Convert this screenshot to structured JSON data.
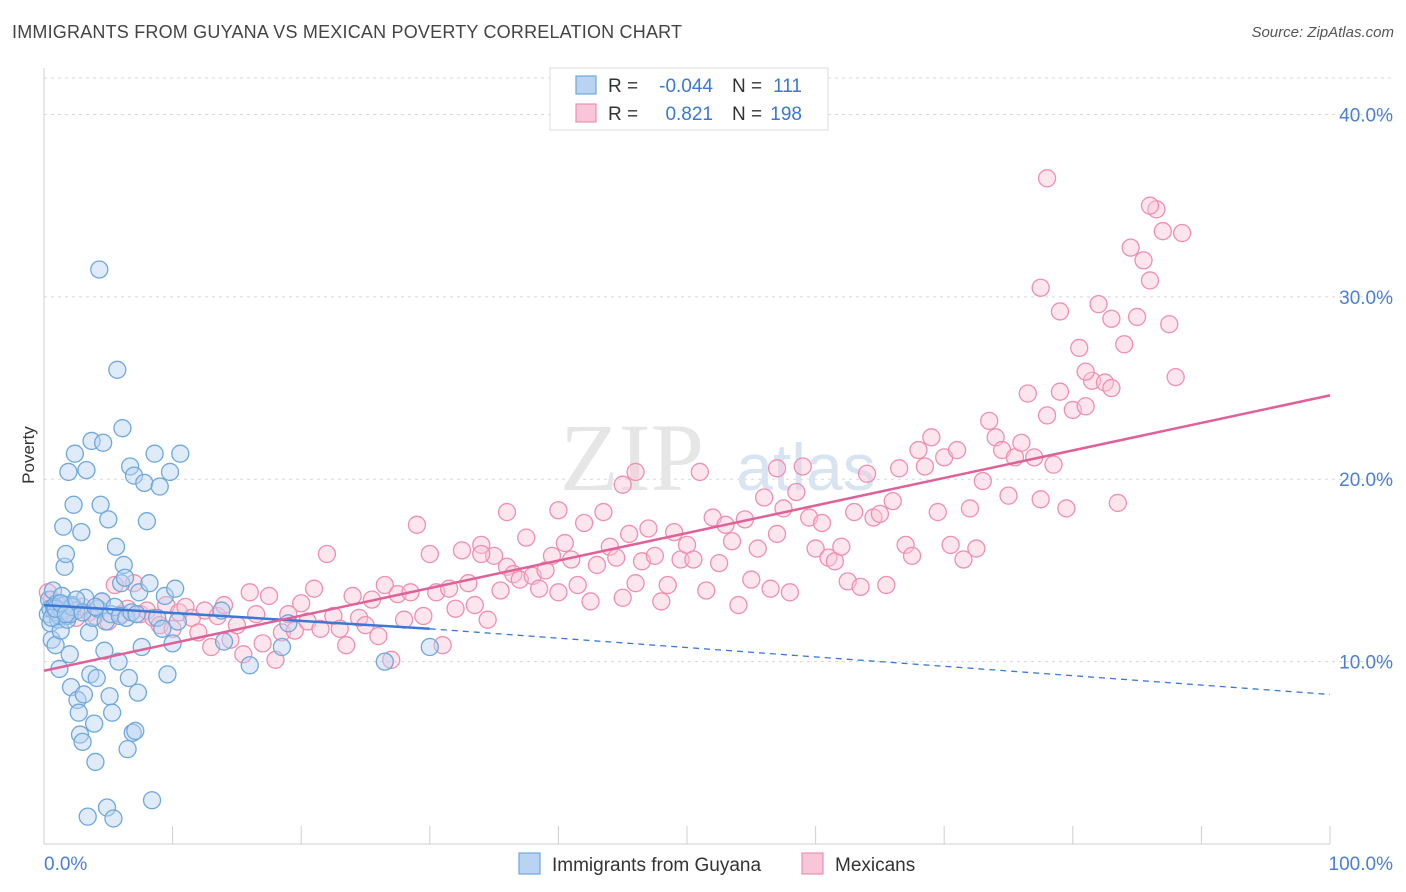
{
  "title": "IMMIGRANTS FROM GUYANA VS MEXICAN POVERTY CORRELATION CHART",
  "source": "Source: ZipAtlas.com",
  "watermark": {
    "zip": "ZIP",
    "atlas": "atlas"
  },
  "colors": {
    "blue": "#6fa8dc",
    "blue_line": "#3a78d4",
    "blue_fill": "#b9d3f2",
    "pink": "#f08fb0",
    "pink_line": "#e0609a",
    "pink_fill": "#f8c6d8",
    "axis_text": "#4a7fd4",
    "grid": "#d8d8d8"
  },
  "legend": {
    "rows": [
      {
        "r_label": "R =",
        "r_value": "-0.044",
        "n_label": "N =",
        "n_value": "111"
      },
      {
        "r_label": "R =",
        "r_value": "0.821",
        "n_label": "N =",
        "n_value": "198"
      }
    ]
  },
  "chart_data": {
    "type": "scatter",
    "title": "IMMIGRANTS FROM GUYANA VS MEXICAN POVERTY CORRELATION CHART",
    "xlabel": "",
    "ylabel": "Poverty",
    "xlim": [
      0,
      100
    ],
    "ylim": [
      0,
      42
    ],
    "x_tick_labels": [
      "0.0%",
      "100.0%"
    ],
    "y_ticks": [
      10,
      20,
      30,
      40
    ],
    "y_tick_labels": [
      "10.0%",
      "20.0%",
      "30.0%",
      "40.0%"
    ],
    "grid": true,
    "legend_position": "bottom",
    "series": [
      {
        "name": "Immigrants from Guyana",
        "color": "#6fa8dc",
        "trend": {
          "x0": 0,
          "y0": 13.1,
          "x1": 30,
          "y1": 11.8,
          "dashed_to_x": 100,
          "dashed_to_y": 8.2
        },
        "points": [
          [
            0.3,
            12.6
          ],
          [
            0.4,
            13.4
          ],
          [
            0.5,
            12.1
          ],
          [
            0.6,
            11.2
          ],
          [
            0.7,
            13.9
          ],
          [
            0.8,
            12.8
          ],
          [
            0.9,
            10.9
          ],
          [
            1.0,
            13.2
          ],
          [
            1.1,
            12.3
          ],
          [
            1.2,
            9.6
          ],
          [
            1.3,
            11.7
          ],
          [
            1.4,
            13.6
          ],
          [
            1.5,
            17.4
          ],
          [
            1.6,
            15.2
          ],
          [
            1.7,
            15.9
          ],
          [
            1.8,
            12.5
          ],
          [
            1.9,
            20.4
          ],
          [
            2.0,
            10.4
          ],
          [
            2.1,
            8.6
          ],
          [
            2.2,
            13.1
          ],
          [
            2.3,
            18.6
          ],
          [
            2.4,
            21.4
          ],
          [
            2.5,
            12.8
          ],
          [
            2.6,
            7.9
          ],
          [
            2.7,
            7.2
          ],
          [
            2.8,
            6.0
          ],
          [
            2.9,
            17.1
          ],
          [
            3.0,
            5.6
          ],
          [
            3.1,
            8.2
          ],
          [
            3.2,
            13.5
          ],
          [
            3.3,
            20.5
          ],
          [
            3.4,
            1.5
          ],
          [
            3.5,
            11.6
          ],
          [
            3.6,
            9.3
          ],
          [
            3.7,
            22.1
          ],
          [
            3.8,
            12.4
          ],
          [
            3.9,
            6.6
          ],
          [
            4.0,
            4.5
          ],
          [
            4.1,
            9.1
          ],
          [
            4.2,
            12.9
          ],
          [
            4.3,
            31.5
          ],
          [
            4.4,
            18.6
          ],
          [
            4.5,
            13.3
          ],
          [
            4.6,
            22.0
          ],
          [
            4.7,
            10.6
          ],
          [
            4.8,
            12.2
          ],
          [
            4.9,
            2.0
          ],
          [
            5.0,
            17.8
          ],
          [
            5.1,
            8.1
          ],
          [
            5.2,
            12.6
          ],
          [
            5.3,
            7.2
          ],
          [
            5.4,
            1.4
          ],
          [
            5.5,
            13.0
          ],
          [
            5.6,
            16.3
          ],
          [
            5.7,
            26.0
          ],
          [
            5.8,
            10.0
          ],
          [
            5.9,
            12.5
          ],
          [
            6.0,
            14.3
          ],
          [
            6.1,
            22.8
          ],
          [
            6.2,
            15.3
          ],
          [
            6.3,
            14.6
          ],
          [
            6.4,
            12.4
          ],
          [
            6.5,
            5.2
          ],
          [
            6.6,
            9.1
          ],
          [
            6.7,
            20.7
          ],
          [
            6.8,
            12.7
          ],
          [
            6.9,
            6.1
          ],
          [
            7.0,
            20.2
          ],
          [
            7.1,
            6.2
          ],
          [
            7.2,
            12.6
          ],
          [
            7.3,
            8.3
          ],
          [
            7.4,
            13.8
          ],
          [
            7.6,
            10.8
          ],
          [
            7.8,
            19.8
          ],
          [
            8.0,
            17.7
          ],
          [
            8.2,
            14.3
          ],
          [
            8.4,
            2.4
          ],
          [
            8.6,
            21.4
          ],
          [
            8.8,
            12.4
          ],
          [
            9.0,
            19.6
          ],
          [
            9.2,
            11.8
          ],
          [
            9.4,
            13.6
          ],
          [
            9.6,
            9.3
          ],
          [
            9.8,
            20.4
          ],
          [
            10.0,
            11.0
          ],
          [
            10.2,
            14.0
          ],
          [
            10.4,
            12.2
          ],
          [
            10.6,
            21.4
          ],
          [
            13.8,
            12.8
          ],
          [
            14.0,
            11.1
          ],
          [
            16.0,
            9.8
          ],
          [
            18.5,
            10.8
          ],
          [
            19.0,
            12.1
          ],
          [
            26.5,
            10.0
          ],
          [
            30.0,
            10.8
          ],
          [
            0.5,
            12.9
          ],
          [
            0.8,
            13.0
          ],
          [
            1.0,
            12.7
          ],
          [
            1.2,
            12.5
          ],
          [
            1.4,
            12.8
          ],
          [
            1.6,
            13.1
          ],
          [
            1.8,
            12.3
          ],
          [
            2.0,
            12.6
          ],
          [
            2.2,
            13.0
          ],
          [
            0.6,
            12.4
          ],
          [
            0.9,
            12.9
          ],
          [
            1.3,
            13.2
          ],
          [
            1.7,
            12.6
          ],
          [
            2.5,
            13.4
          ],
          [
            3.0,
            12.7
          ],
          [
            4.0,
            13.0
          ]
        ]
      },
      {
        "name": "Mexicans",
        "color": "#f08fb0",
        "trend": {
          "x0": 0,
          "y0": 9.5,
          "x1": 100,
          "y1": 24.6
        },
        "points": [
          [
            0.3,
            13.8
          ],
          [
            0.6,
            13.4
          ],
          [
            1.0,
            12.9
          ],
          [
            1.5,
            12.6
          ],
          [
            2.0,
            13.1
          ],
          [
            2.5,
            12.4
          ],
          [
            3.0,
            13.0
          ],
          [
            3.5,
            12.7
          ],
          [
            4.0,
            12.5
          ],
          [
            4.5,
            13.3
          ],
          [
            5.0,
            12.2
          ],
          [
            5.5,
            14.2
          ],
          [
            6.0,
            12.6
          ],
          [
            6.5,
            12.9
          ],
          [
            7.0,
            14.3
          ],
          [
            7.5,
            12.6
          ],
          [
            8.0,
            12.8
          ],
          [
            8.5,
            12.4
          ],
          [
            9.0,
            12.0
          ],
          [
            9.5,
            13.1
          ],
          [
            10.0,
            11.8
          ],
          [
            10.5,
            12.7
          ],
          [
            11.0,
            13.0
          ],
          [
            11.5,
            12.4
          ],
          [
            12.0,
            11.6
          ],
          [
            12.5,
            12.8
          ],
          [
            13.0,
            10.8
          ],
          [
            13.5,
            12.5
          ],
          [
            14.0,
            13.1
          ],
          [
            14.5,
            11.2
          ],
          [
            15.0,
            12.0
          ],
          [
            15.5,
            10.4
          ],
          [
            16.0,
            13.8
          ],
          [
            16.5,
            12.6
          ],
          [
            17.0,
            11.0
          ],
          [
            17.5,
            13.6
          ],
          [
            18.0,
            10.1
          ],
          [
            18.5,
            11.6
          ],
          [
            19.0,
            12.6
          ],
          [
            19.5,
            11.7
          ],
          [
            20.0,
            13.2
          ],
          [
            20.5,
            12.2
          ],
          [
            21.0,
            14.0
          ],
          [
            21.5,
            11.8
          ],
          [
            22.0,
            15.9
          ],
          [
            22.5,
            12.5
          ],
          [
            23.0,
            11.8
          ],
          [
            23.5,
            10.9
          ],
          [
            24.0,
            13.6
          ],
          [
            24.5,
            12.4
          ],
          [
            25.0,
            12.0
          ],
          [
            25.5,
            13.4
          ],
          [
            26.0,
            11.4
          ],
          [
            26.5,
            14.2
          ],
          [
            27.0,
            10.1
          ],
          [
            27.5,
            13.7
          ],
          [
            28.0,
            12.3
          ],
          [
            28.5,
            13.8
          ],
          [
            29.0,
            17.5
          ],
          [
            29.5,
            12.5
          ],
          [
            30.0,
            15.9
          ],
          [
            30.5,
            13.8
          ],
          [
            31.0,
            10.9
          ],
          [
            31.5,
            14.0
          ],
          [
            32.0,
            12.9
          ],
          [
            32.5,
            16.1
          ],
          [
            33.0,
            14.3
          ],
          [
            33.5,
            13.1
          ],
          [
            34.0,
            16.4
          ],
          [
            34.5,
            12.3
          ],
          [
            35.0,
            15.8
          ],
          [
            35.5,
            13.9
          ],
          [
            36.0,
            15.2
          ],
          [
            36.5,
            14.8
          ],
          [
            37.0,
            14.5
          ],
          [
            37.5,
            16.8
          ],
          [
            38.0,
            14.7
          ],
          [
            38.5,
            14.0
          ],
          [
            39.0,
            15.0
          ],
          [
            39.5,
            15.8
          ],
          [
            40.0,
            13.8
          ],
          [
            40.5,
            16.5
          ],
          [
            41.0,
            15.6
          ],
          [
            41.5,
            14.2
          ],
          [
            42.0,
            17.6
          ],
          [
            42.5,
            13.3
          ],
          [
            43.0,
            15.3
          ],
          [
            43.5,
            18.2
          ],
          [
            44.0,
            16.3
          ],
          [
            44.5,
            15.7
          ],
          [
            45.0,
            13.5
          ],
          [
            45.5,
            17.0
          ],
          [
            46.0,
            14.3
          ],
          [
            46.5,
            15.5
          ],
          [
            47.0,
            17.3
          ],
          [
            47.5,
            15.8
          ],
          [
            48.0,
            13.3
          ],
          [
            48.5,
            14.2
          ],
          [
            49.0,
            17.1
          ],
          [
            49.5,
            15.6
          ],
          [
            50.0,
            16.4
          ],
          [
            50.5,
            15.6
          ],
          [
            51.0,
            20.4
          ],
          [
            51.5,
            13.9
          ],
          [
            52.0,
            17.9
          ],
          [
            52.5,
            15.4
          ],
          [
            53.0,
            17.5
          ],
          [
            53.5,
            16.6
          ],
          [
            54.0,
            13.1
          ],
          [
            54.5,
            17.8
          ],
          [
            55.0,
            14.5
          ],
          [
            55.5,
            16.2
          ],
          [
            56.0,
            19.0
          ],
          [
            56.5,
            14.0
          ],
          [
            57.0,
            17.0
          ],
          [
            57.5,
            18.4
          ],
          [
            58.0,
            13.8
          ],
          [
            58.5,
            19.3
          ],
          [
            59.0,
            20.7
          ],
          [
            59.5,
            17.9
          ],
          [
            60.0,
            16.2
          ],
          [
            60.5,
            17.6
          ],
          [
            61.0,
            15.7
          ],
          [
            61.5,
            15.5
          ],
          [
            62.0,
            16.3
          ],
          [
            62.5,
            14.4
          ],
          [
            63.0,
            18.2
          ],
          [
            63.5,
            14.1
          ],
          [
            64.0,
            20.3
          ],
          [
            64.5,
            17.9
          ],
          [
            65.0,
            18.1
          ],
          [
            65.5,
            14.2
          ],
          [
            66.0,
            18.8
          ],
          [
            66.5,
            20.6
          ],
          [
            67.0,
            16.4
          ],
          [
            67.5,
            15.8
          ],
          [
            68.0,
            21.6
          ],
          [
            68.5,
            20.7
          ],
          [
            69.0,
            22.3
          ],
          [
            69.5,
            18.2
          ],
          [
            70.0,
            21.2
          ],
          [
            70.5,
            16.4
          ],
          [
            71.0,
            21.6
          ],
          [
            71.5,
            15.6
          ],
          [
            72.0,
            18.4
          ],
          [
            72.5,
            16.2
          ],
          [
            73.0,
            19.9
          ],
          [
            73.5,
            23.2
          ],
          [
            74.0,
            22.3
          ],
          [
            74.5,
            21.6
          ],
          [
            75.0,
            19.1
          ],
          [
            75.5,
            21.2
          ],
          [
            76.0,
            22.0
          ],
          [
            76.5,
            24.7
          ],
          [
            77.0,
            21.2
          ],
          [
            77.5,
            18.9
          ],
          [
            78.0,
            23.5
          ],
          [
            78.5,
            20.8
          ],
          [
            79.0,
            24.8
          ],
          [
            79.5,
            18.4
          ],
          [
            80.0,
            23.8
          ],
          [
            80.5,
            27.2
          ],
          [
            81.0,
            24.0
          ],
          [
            81.5,
            25.4
          ],
          [
            82.0,
            29.6
          ],
          [
            82.5,
            25.3
          ],
          [
            83.0,
            28.8
          ],
          [
            83.5,
            18.7
          ],
          [
            84.0,
            27.4
          ],
          [
            84.5,
            32.7
          ],
          [
            85.0,
            28.9
          ],
          [
            85.5,
            32.0
          ],
          [
            86.0,
            30.9
          ],
          [
            86.5,
            34.8
          ],
          [
            87.0,
            33.6
          ],
          [
            87.5,
            28.5
          ],
          [
            88.0,
            25.6
          ],
          [
            79.0,
            29.2
          ],
          [
            77.5,
            30.5
          ],
          [
            78.0,
            36.5
          ],
          [
            83.0,
            25.0
          ],
          [
            81.0,
            25.9
          ],
          [
            86.0,
            35.0
          ],
          [
            88.5,
            33.5
          ],
          [
            57.0,
            20.6
          ],
          [
            45.0,
            19.7
          ],
          [
            40.0,
            18.3
          ],
          [
            36.0,
            18.2
          ],
          [
            34.0,
            15.9
          ],
          [
            46.0,
            20.4
          ]
        ]
      }
    ]
  }
}
